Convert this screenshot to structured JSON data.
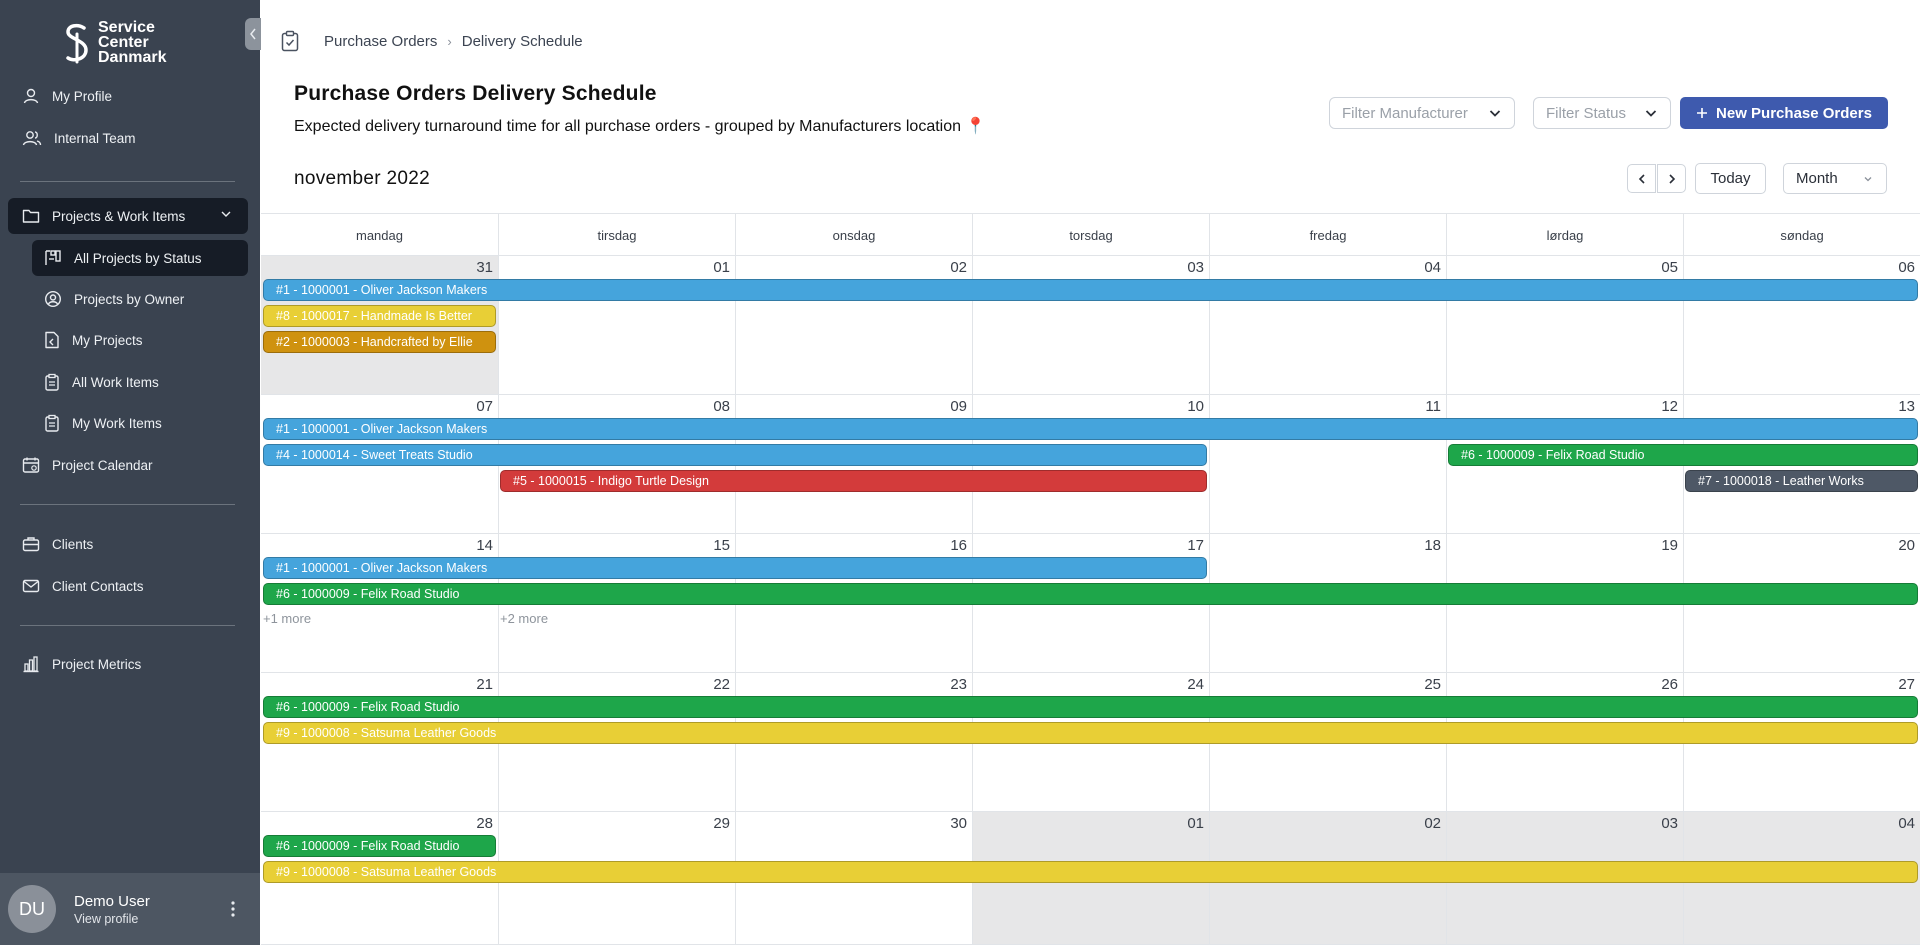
{
  "sidebar": {
    "logo_lines": [
      "Service",
      "Center",
      "Danmark"
    ],
    "items": [
      {
        "label": "My Profile",
        "icon": "user-icon"
      },
      {
        "label": "Internal Team",
        "icon": "users-icon"
      },
      {
        "label": "Projects & Work Items",
        "icon": "folder-icon"
      },
      {
        "label": "All Projects by Status",
        "icon": "kanban-icon"
      },
      {
        "label": "Projects by Owner",
        "icon": "user-circle-icon"
      },
      {
        "label": "My Projects",
        "icon": "file-icon"
      },
      {
        "label": "All Work Items",
        "icon": "clipboard-icon"
      },
      {
        "label": "My Work Items",
        "icon": "clipboard-icon"
      },
      {
        "label": "Project Calendar",
        "icon": "calendar-icon"
      },
      {
        "label": "Clients",
        "icon": "briefcase-icon"
      },
      {
        "label": "Client Contacts",
        "icon": "mail-icon"
      },
      {
        "label": "Project Metrics",
        "icon": "bar-chart-icon"
      }
    ],
    "user": {
      "initials": "DU",
      "name": "Demo User",
      "link": "View profile"
    }
  },
  "breadcrumb": {
    "parent": "Purchase Orders",
    "current": "Delivery Schedule"
  },
  "page": {
    "title": "Purchase Orders Delivery Schedule",
    "subtitle": "Expected delivery turnaround time for all purchase orders - grouped by Manufacturers location 📍"
  },
  "filters": {
    "manufacturer": "Filter Manufacturer",
    "status": "Filter Status"
  },
  "new_button": "New Purchase Orders",
  "calendar": {
    "month_title": "november 2022",
    "today_label": "Today",
    "view_label": "Month",
    "weekdays": [
      "mandag",
      "tirsdag",
      "onsdag",
      "torsdag",
      "fredag",
      "lørdag",
      "søndag"
    ],
    "weeks": [
      {
        "days": [
          "31",
          "01",
          "02",
          "03",
          "04",
          "05",
          "06"
        ],
        "other": [
          0
        ]
      },
      {
        "days": [
          "07",
          "08",
          "09",
          "10",
          "11",
          "12",
          "13"
        ],
        "other": []
      },
      {
        "days": [
          "14",
          "15",
          "16",
          "17",
          "18",
          "19",
          "20"
        ],
        "other": []
      },
      {
        "days": [
          "21",
          "22",
          "23",
          "24",
          "25",
          "26",
          "27"
        ],
        "other": []
      },
      {
        "days": [
          "28",
          "29",
          "30",
          "01",
          "02",
          "03",
          "04"
        ],
        "other": [
          3,
          4,
          5,
          6
        ]
      }
    ],
    "events": [
      {
        "label": "#1 - 1000001 - Oliver Jackson Makers",
        "week": 0,
        "start": 0,
        "end": 6,
        "slot": 0,
        "color": "#45a4dc"
      },
      {
        "label": "#8 - 1000017 - Handmade Is Better",
        "week": 0,
        "start": 0,
        "end": 0,
        "slot": 1,
        "color": "#e8cf36"
      },
      {
        "label": "#2 - 1000003 - Handcrafted by Ellie",
        "week": 0,
        "start": 0,
        "end": 0,
        "slot": 2,
        "color": "#cf920f"
      },
      {
        "label": "#1 - 1000001 - Oliver Jackson Makers",
        "week": 1,
        "start": 0,
        "end": 6,
        "slot": 0,
        "color": "#45a4dc"
      },
      {
        "label": "#4 - 1000014 - Sweet Treats Studio",
        "week": 1,
        "start": 0,
        "end": 3,
        "slot": 1,
        "color": "#45a4dc"
      },
      {
        "label": "#6 - 1000009 - Felix Road Studio",
        "week": 1,
        "start": 5,
        "end": 6,
        "slot": 1,
        "color": "#1ea64a"
      },
      {
        "label": "#5 - 1000015 - Indigo Turtle Design",
        "week": 1,
        "start": 1,
        "end": 3,
        "slot": 2,
        "color": "#d33b3b"
      },
      {
        "label": "#7 - 1000018 - Leather Works",
        "week": 1,
        "start": 6,
        "end": 6,
        "slot": 2,
        "color": "#4e5866"
      },
      {
        "label": "#1 - 1000001 - Oliver Jackson Makers",
        "week": 2,
        "start": 0,
        "end": 3,
        "slot": 0,
        "color": "#45a4dc"
      },
      {
        "label": "#6 - 1000009 - Felix Road Studio",
        "week": 2,
        "start": 0,
        "end": 6,
        "slot": 1,
        "color": "#1ea64a"
      },
      {
        "label": "#6 - 1000009 - Felix Road Studio",
        "week": 3,
        "start": 0,
        "end": 6,
        "slot": 0,
        "color": "#1ea64a"
      },
      {
        "label": "#9 - 1000008 - Satsuma Leather Goods",
        "week": 3,
        "start": 0,
        "end": 6,
        "slot": 1,
        "color": "#e8cf36"
      },
      {
        "label": "#6 - 1000009 - Felix Road Studio",
        "week": 4,
        "start": 0,
        "end": 0,
        "slot": 0,
        "color": "#1ea64a"
      },
      {
        "label": "#9 - 1000008 - Satsuma Leather Goods",
        "week": 4,
        "start": 0,
        "end": 6,
        "slot": 1,
        "color": "#e8cf36"
      }
    ],
    "more_links": [
      {
        "label": "+1 more",
        "week": 2,
        "day": 0
      },
      {
        "label": "+2 more",
        "week": 2,
        "day": 1
      }
    ]
  }
}
